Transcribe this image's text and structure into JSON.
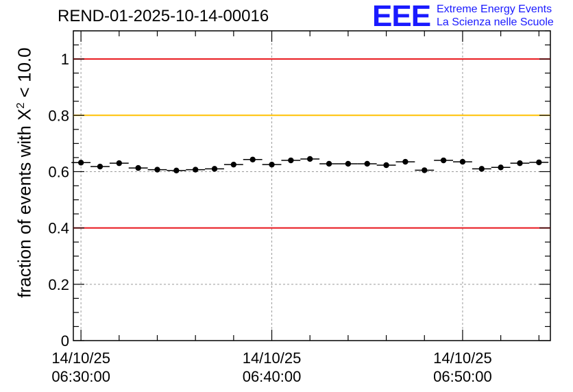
{
  "header": {
    "title": "REND-01-2025-10-14-00016"
  },
  "logo": {
    "mark": "EEE",
    "line1": "Extreme Energy Events",
    "line2": "La Scienza nelle Scuole",
    "color": "#1a1aff"
  },
  "chart_data": {
    "type": "scatter",
    "title": "REND-01-2025-10-14-00016",
    "ylabel_prefix": "fraction of events with X",
    "ylabel_sup": "2",
    "ylabel_suffix": " < 10.0",
    "xlabel": "",
    "ylim": [
      0,
      1.1
    ],
    "xlim_minutes": [
      -0.4,
      24.6
    ],
    "y_ticks": [
      {
        "value": 0,
        "label": "0"
      },
      {
        "value": 0.2,
        "label": "0.2"
      },
      {
        "value": 0.4,
        "label": "0.4"
      },
      {
        "value": 0.6,
        "label": "0.6"
      },
      {
        "value": 0.8,
        "label": "0.8"
      },
      {
        "value": 1.0,
        "label": "1"
      }
    ],
    "x_ticks": [
      {
        "minute": 0,
        "date": "14/10/25",
        "time": "06:30:00"
      },
      {
        "minute": 10,
        "date": "14/10/25",
        "time": "06:40:00"
      },
      {
        "minute": 20,
        "date": "14/10/25",
        "time": "06:50:00"
      }
    ],
    "grid": true,
    "reference_lines": [
      {
        "y": 1.0,
        "color": "#e8141a"
      },
      {
        "y": 0.8,
        "color": "#ffc000"
      },
      {
        "y": 0.4,
        "color": "#e8141a"
      }
    ],
    "series": [
      {
        "name": "fraction",
        "color": "#000000",
        "bin_width_minutes": 1,
        "x_minutes": [
          0,
          1,
          2,
          3,
          4,
          5,
          6,
          7,
          8,
          9,
          10,
          11,
          12,
          13,
          14,
          15,
          16,
          17,
          18,
          19,
          20,
          21,
          22,
          23,
          24
        ],
        "values": [
          0.632,
          0.618,
          0.63,
          0.613,
          0.607,
          0.604,
          0.607,
          0.61,
          0.625,
          0.643,
          0.625,
          0.64,
          0.645,
          0.628,
          0.628,
          0.628,
          0.623,
          0.635,
          0.605,
          0.64,
          0.635,
          0.61,
          0.615,
          0.63,
          0.633
        ],
        "errors": [
          0.008,
          0.008,
          0.008,
          0.008,
          0.008,
          0.008,
          0.008,
          0.008,
          0.008,
          0.008,
          0.008,
          0.008,
          0.008,
          0.008,
          0.008,
          0.008,
          0.008,
          0.008,
          0.008,
          0.008,
          0.008,
          0.008,
          0.008,
          0.008,
          0.008
        ]
      }
    ]
  }
}
